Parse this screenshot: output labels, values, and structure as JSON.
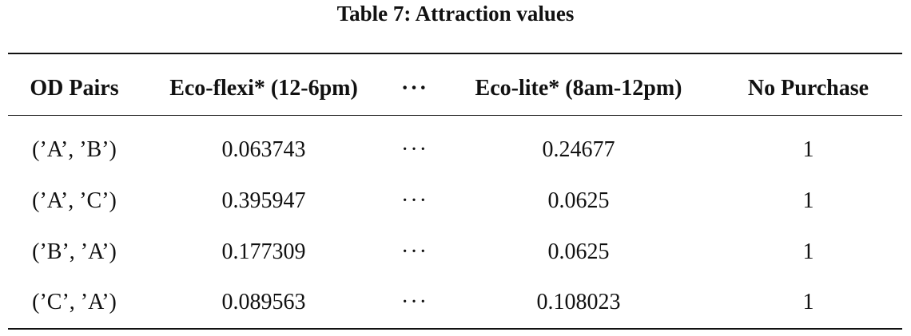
{
  "table": {
    "caption": "Table 7: Attraction values",
    "headers": [
      "OD Pairs",
      "Eco-flexi* (12-6pm)",
      "···",
      "Eco-lite* (8am-12pm)",
      "No Purchase"
    ],
    "rows": [
      [
        "(’A’, ’B’)",
        "0.063743",
        "···",
        "0.24677",
        "1"
      ],
      [
        "(’A’, ’C’)",
        "0.395947",
        "···",
        "0.0625",
        "1"
      ],
      [
        "(’B’, ’A’)",
        "0.177309",
        "···",
        "0.0625",
        "1"
      ],
      [
        "(’C’, ’A’)",
        "0.089563",
        "···",
        "0.108023",
        "1"
      ]
    ]
  }
}
